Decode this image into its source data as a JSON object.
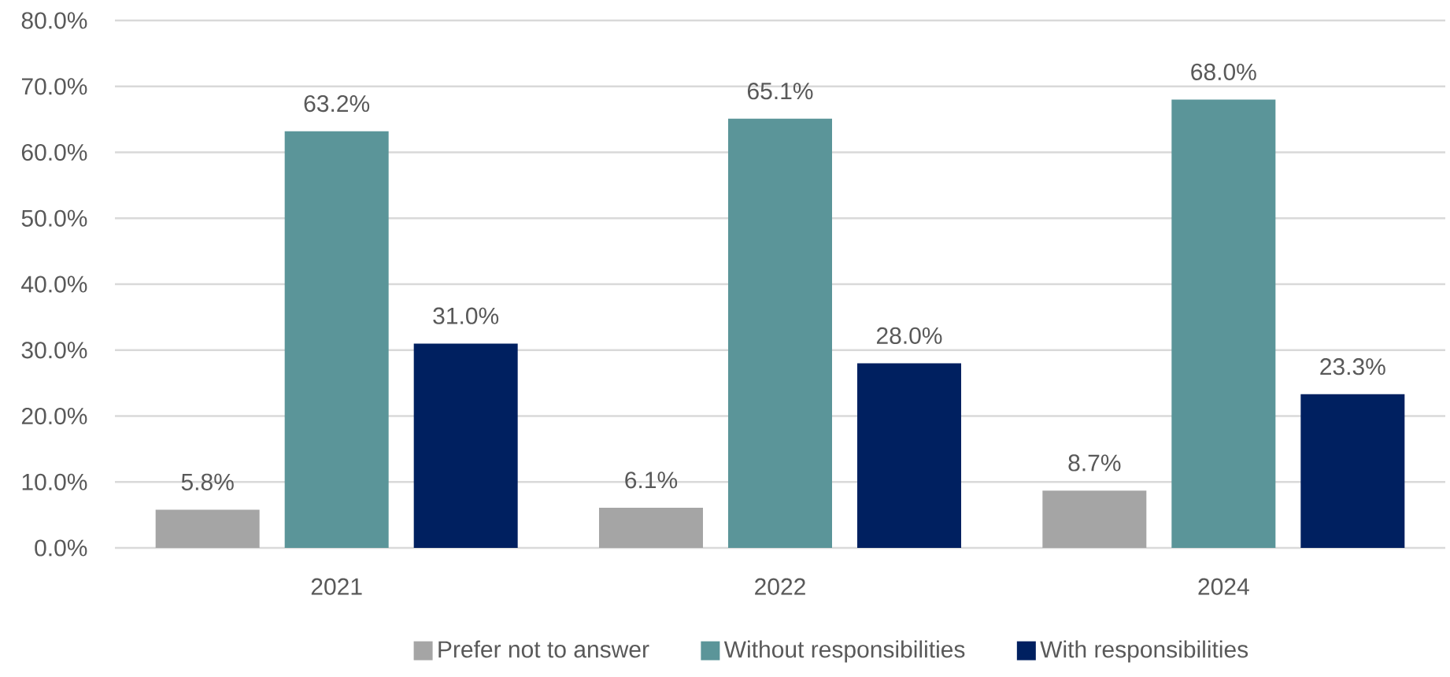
{
  "chart_data": {
    "type": "bar",
    "categories": [
      "2021",
      "2022",
      "2024"
    ],
    "series": [
      {
        "name": "Prefer not to answer",
        "color": "#a5a5a5",
        "values": [
          5.8,
          6.1,
          8.7
        ],
        "value_labels": [
          "5.8%",
          "6.1%",
          "8.7%"
        ]
      },
      {
        "name": "Without responsibilities",
        "color": "#5b9599",
        "values": [
          63.2,
          65.1,
          68.0
        ],
        "value_labels": [
          "63.2%",
          "65.1%",
          "68.0%"
        ]
      },
      {
        "name": "With responsibilities",
        "color": "#002060",
        "values": [
          31.0,
          28.0,
          23.3
        ],
        "value_labels": [
          "31.0%",
          "28.0%",
          "23.3%"
        ]
      }
    ],
    "ylim": [
      0,
      80
    ],
    "yticks": [
      {
        "value": 0,
        "label": "0.0%"
      },
      {
        "value": 10,
        "label": "10.0%"
      },
      {
        "value": 20,
        "label": "20.0%"
      },
      {
        "value": 30,
        "label": "30.0%"
      },
      {
        "value": 40,
        "label": "40.0%"
      },
      {
        "value": 50,
        "label": "50.0%"
      },
      {
        "value": 60,
        "label": "60.0%"
      },
      {
        "value": 70,
        "label": "70.0%"
      },
      {
        "value": 80,
        "label": "80.0%"
      }
    ],
    "grid": "y",
    "legend": "bottom"
  }
}
